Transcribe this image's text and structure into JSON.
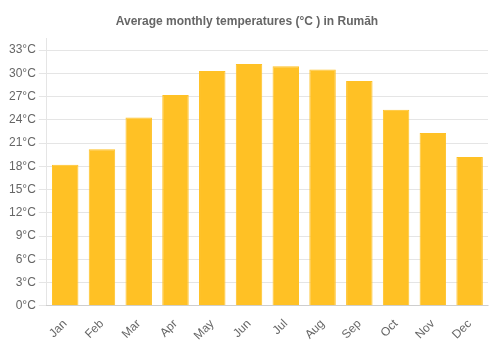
{
  "chart_data": {
    "type": "bar",
    "title": "Average monthly temperatures (°C ) in Rumāh",
    "categories": [
      "Jan",
      "Feb",
      "Mar",
      "Apr",
      "May",
      "Jun",
      "Jul",
      "Aug",
      "Sep",
      "Oct",
      "Nov",
      "Dec"
    ],
    "values": [
      18.2,
      20.2,
      24.3,
      27.2,
      30.3,
      31.2,
      30.9,
      30.5,
      29.0,
      25.3,
      22.3,
      19.2
    ],
    "color": "#FFC125",
    "ylim": [
      0,
      34.5
    ],
    "yticks": [
      {
        "value": 0,
        "label": "0°C"
      },
      {
        "value": 3,
        "label": "3°C"
      },
      {
        "value": 6,
        "label": "6°C"
      },
      {
        "value": 9,
        "label": "9°C"
      },
      {
        "value": 12,
        "label": "12°C"
      },
      {
        "value": 15,
        "label": "15°C"
      },
      {
        "value": 18,
        "label": "18°C"
      },
      {
        "value": 21,
        "label": "21°C"
      },
      {
        "value": 24,
        "label": "24°C"
      },
      {
        "value": 27,
        "label": "27°C"
      },
      {
        "value": 30,
        "label": "30°C"
      },
      {
        "value": 33,
        "label": "33°C"
      }
    ],
    "grid": true
  }
}
